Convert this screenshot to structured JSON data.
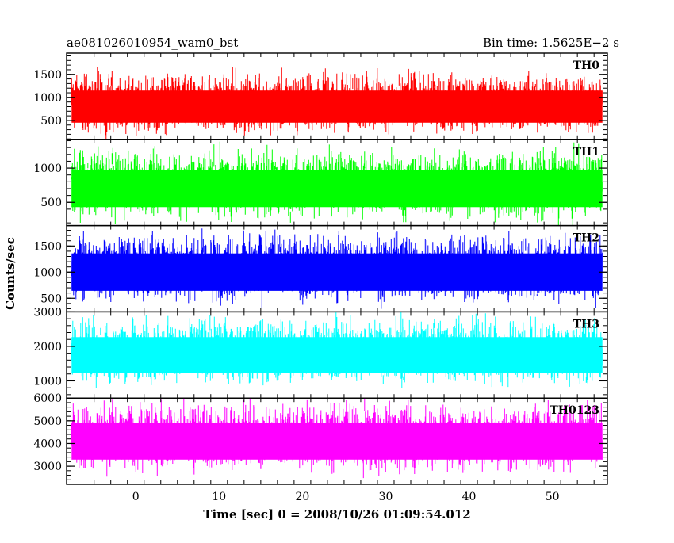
{
  "header": {
    "title": "ae081026010954_wam0_bst",
    "bin_time": "Bin time: 1.5625E−2 s"
  },
  "chart_data": {
    "type": "line",
    "xlabel": "Time [sec] 0 = 2008/10/26 01:09:54.012",
    "ylabel": "Counts/sec",
    "xlim": [
      -8.3,
      56.6
    ],
    "x_ticks": [
      0,
      10,
      20,
      30,
      40,
      50
    ],
    "x_tick_labels": [
      "0",
      "10",
      "20",
      "30",
      "40",
      "50"
    ],
    "data_x_range": [
      -7.7,
      56.0
    ],
    "grid": false,
    "panels": [
      {
        "name": "TH0",
        "color": "#ff0000",
        "ylim": [
          90,
          1960
        ],
        "y_ticks": [
          500,
          1000,
          1500
        ],
        "y_tick_labels": [
          "500",
          "1000",
          "1500"
        ],
        "band": {
          "mean": 800,
          "low": 150,
          "high": 1700
        }
      },
      {
        "name": "TH1",
        "color": "#00ff00",
        "ylim": [
          160,
          1420
        ],
        "y_ticks": [
          500,
          1000
        ],
        "y_tick_labels": [
          "500",
          "1000"
        ],
        "band": {
          "mean": 700,
          "low": 200,
          "high": 1400
        }
      },
      {
        "name": "TH2",
        "color": "#0000ff",
        "ylim": [
          240,
          1890
        ],
        "y_ticks": [
          500,
          1000,
          1500
        ],
        "y_tick_labels": [
          "500",
          "1000",
          "1500"
        ],
        "band": {
          "mean": 1000,
          "low": 300,
          "high": 1890
        }
      },
      {
        "name": "TH3",
        "color": "#00ffff",
        "ylim": [
          500,
          3000
        ],
        "y_ticks": [
          1000,
          2000,
          3000
        ],
        "y_tick_labels": [
          "1000",
          "2000",
          "3000"
        ],
        "band": {
          "mean": 1750,
          "low": 700,
          "high": 3000
        }
      },
      {
        "name": "TH0123",
        "color": "#ff00ff",
        "ylim": [
          2200,
          6000
        ],
        "y_ticks": [
          3000,
          4000,
          5000,
          6000
        ],
        "y_tick_labels": [
          "3000",
          "4000",
          "5000",
          "6000"
        ],
        "band": {
          "mean": 4100,
          "low": 2300,
          "high": 5900
        }
      }
    ]
  }
}
